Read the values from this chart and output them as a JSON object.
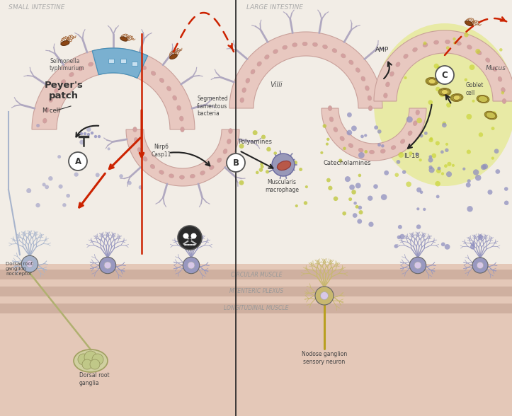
{
  "bg_color": "#f5f0eb",
  "intestine_fill": "#e8c8c0",
  "intestine_outer": "#c9a09a",
  "cell_color": "#d4a0a0",
  "villi_color": "#b0a8c0",
  "mucus_bg_color": "#e8ec80",
  "m_cell_color": "#7ab0d0",
  "neuron_color_blue": "#a8b4cc",
  "neuron_color_purple": "#9898c0",
  "neuron_color_yellow": "#c8b870",
  "bacteria_color": "#8b4513",
  "dot_purple": "#9090c0",
  "dot_yellow_green": "#c8c840",
  "arrow_red": "#cc2200",
  "arrow_black": "#222222",
  "divider_color": "#333333",
  "title_left": "SMALL INTESTINE",
  "title_right": "LARGE INTESTINE",
  "label_peyers": "Peyer's\npatch",
  "label_mcell": "M cell",
  "label_selmonella": "Selmonella\ntyphimurium",
  "label_segmented": "Segmented\nfiamentous\nbacteria",
  "label_villi": "Villi",
  "label_amp": "AMP",
  "label_mucus": "Mucus",
  "label_goblet": "Goblet\ncell",
  "label_il18": "IL-18",
  "label_polyamines": "Polyamines",
  "label_nirp6": "Nirp6\nCasp11",
  "label_muscularis": "Muscularis\nmacrophage",
  "label_catecholamines": "Catecholamines",
  "label_circular": "CIRCULAR MUSCLE",
  "label_myenteric": "MYENTERIC PLEXUS",
  "label_longitudinal": "LONGITUDINAL MUSCLE",
  "label_drg_noci": "Dorsal root\nganglion\nnociceptor",
  "label_drg": "Dorsal root\nganglia",
  "label_nodose": "Nodose ganglion\nsensory neuron"
}
